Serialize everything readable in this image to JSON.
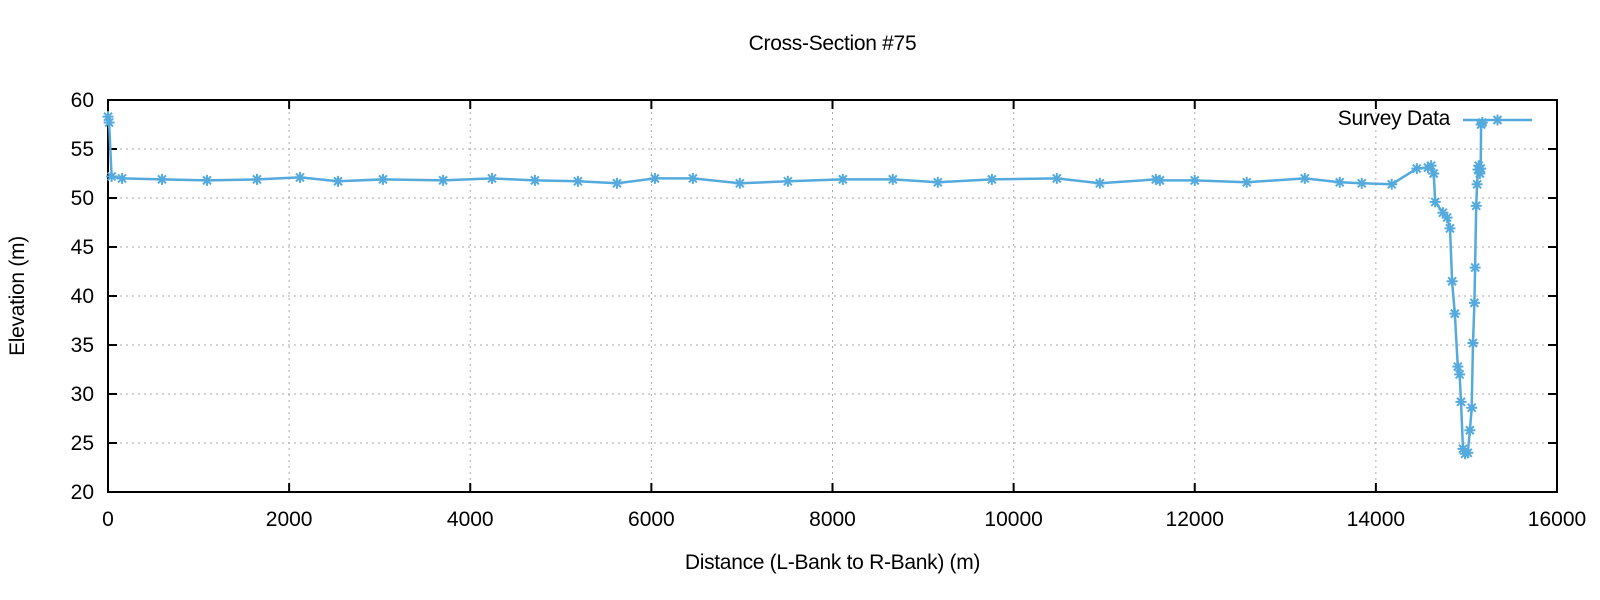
{
  "page_title": "Cross-Section #75",
  "colors": {
    "background": "#ffffff",
    "border": "#000000",
    "grid": "#aaaaaa",
    "text": "#000000",
    "series_blue": "#55aadd"
  },
  "chart_data": {
    "type": "line",
    "title": "Cross-Section #75",
    "xlabel": "Distance (L-Bank to R-Bank) (m)",
    "ylabel": "Elevation (m)",
    "xlim": [
      0,
      16000
    ],
    "ylim": [
      20,
      60
    ],
    "xticks": [
      0,
      2000,
      4000,
      6000,
      8000,
      10000,
      12000,
      14000,
      16000
    ],
    "yticks": [
      20,
      25,
      30,
      35,
      40,
      45,
      50,
      55,
      60
    ],
    "grid": true,
    "grid_style": "dashed",
    "legend_position": "top-right-inside",
    "series": [
      {
        "name": "Survey Data",
        "color": "#55aadd",
        "marker": "asterisk",
        "points": [
          [
            0,
            58.3
          ],
          [
            12,
            57.7
          ],
          [
            40,
            52.2
          ],
          [
            155,
            52.0
          ],
          [
            596,
            51.9
          ],
          [
            1093,
            51.8
          ],
          [
            1645,
            51.9
          ],
          [
            2120,
            52.1
          ],
          [
            2540,
            51.7
          ],
          [
            3036,
            51.9
          ],
          [
            3700,
            51.8
          ],
          [
            4240,
            52.0
          ],
          [
            4714,
            51.8
          ],
          [
            5189,
            51.7
          ],
          [
            5620,
            51.5
          ],
          [
            6039,
            52.0
          ],
          [
            6458,
            52.0
          ],
          [
            6977,
            51.5
          ],
          [
            7507,
            51.7
          ],
          [
            8114,
            51.9
          ],
          [
            8666,
            51.9
          ],
          [
            9163,
            51.6
          ],
          [
            9760,
            51.9
          ],
          [
            10477,
            52.0
          ],
          [
            10952,
            51.5
          ],
          [
            11570,
            51.9
          ],
          [
            11615,
            51.8
          ],
          [
            12000,
            51.8
          ],
          [
            12574,
            51.6
          ],
          [
            13215,
            52.0
          ],
          [
            13601,
            51.6
          ],
          [
            13844,
            51.5
          ],
          [
            14175,
            51.4
          ],
          [
            14452,
            53.0
          ],
          [
            14575,
            53.1
          ],
          [
            14610,
            53.3
          ],
          [
            14638,
            52.5
          ],
          [
            14655,
            49.6
          ],
          [
            14740,
            48.5
          ],
          [
            14786,
            48.0
          ],
          [
            14818,
            46.9
          ],
          [
            14842,
            41.5
          ],
          [
            14872,
            38.2
          ],
          [
            14905,
            32.8
          ],
          [
            14925,
            32.0
          ],
          [
            14940,
            29.2
          ],
          [
            14962,
            24.4
          ],
          [
            14985,
            23.9
          ],
          [
            15015,
            24.0
          ],
          [
            15038,
            26.3
          ],
          [
            15058,
            28.6
          ],
          [
            15072,
            35.2
          ],
          [
            15088,
            39.3
          ],
          [
            15096,
            42.9
          ],
          [
            15108,
            49.2
          ],
          [
            15118,
            51.4
          ],
          [
            15128,
            52.9
          ],
          [
            15136,
            53.3
          ],
          [
            15148,
            52.5
          ],
          [
            15158,
            53.0
          ],
          [
            15162,
            57.5
          ],
          [
            15175,
            57.7
          ]
        ]
      }
    ]
  }
}
